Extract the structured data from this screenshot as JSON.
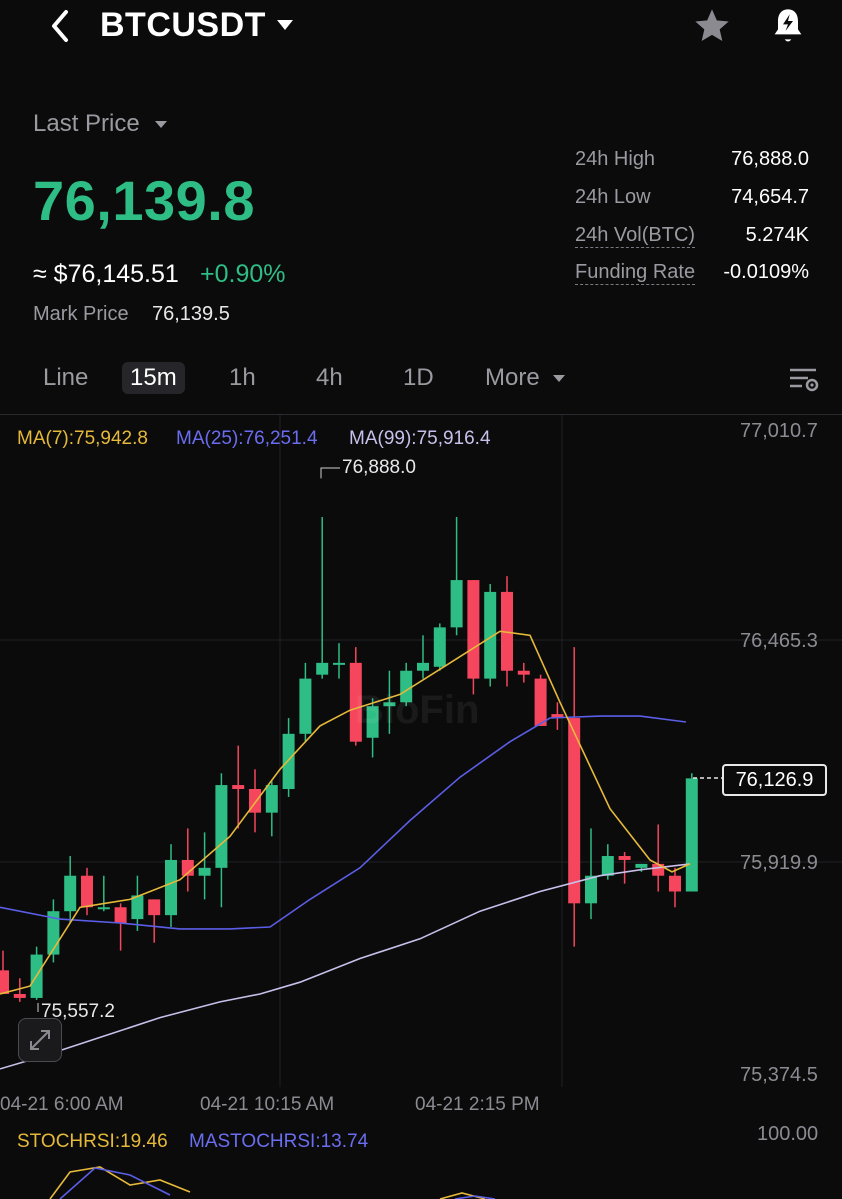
{
  "header": {
    "back_icon": "chevron-left-icon",
    "symbol": "BTCUSDT",
    "dropdown_icon": "caret-down-icon",
    "favorite_icon": "star-icon",
    "alert_icon": "bell-bolt-icon"
  },
  "ticker": {
    "last_price_label": "Last Price",
    "last_price": "76,139.8",
    "usd_value": "≈ $76,145.51",
    "change_pct": "+0.90%",
    "mark_price_label": "Mark Price",
    "mark_price": "76,139.5",
    "stats": [
      {
        "label": "24h High",
        "value": "76,888.0"
      },
      {
        "label": "24h Low",
        "value": "74,654.7"
      },
      {
        "label": "24h Vol(BTC)",
        "value": "5.274K"
      },
      {
        "label": "Funding Rate",
        "value": "-0.0109%"
      }
    ],
    "up_color": "#2ebd85",
    "down_color": "#f6465d"
  },
  "intervals": {
    "tabs": [
      "Line",
      "15m",
      "1h",
      "4h",
      "1D"
    ],
    "active": "15m",
    "more_label": "More",
    "settings_icon": "chart-settings-icon"
  },
  "indicators": {
    "ma7": "MA(7):75,942.8",
    "ma25": "MA(25):76,251.4",
    "ma99": "MA(99):75,916.4",
    "ma7_color": "#e6b93a",
    "ma25_color": "#5b5ee6",
    "ma99_color": "#c8c0ea",
    "stochrsi": "STOCHRSI:19.46",
    "mastochrsi": "MASTOCHRSI:13.74"
  },
  "watermark": "BloFin",
  "current_price_tag": "76,126.9",
  "chart_data": {
    "type": "candlestick",
    "y_axis_labels": [
      "77,010.7",
      "76,465.3",
      "75,919.9",
      "75,374.5"
    ],
    "x_axis_labels": [
      "04-21 6:00 AM",
      "04-21 10:15 AM",
      "04-21 2:15 PM"
    ],
    "high_marker": "76,888.0",
    "low_marker": "75,557.2",
    "stoch_axis_label": "100.00",
    "ylim": [
      75374.5,
      77010.7
    ],
    "candles": [
      [
        75640,
        75690,
        75580,
        75580
      ],
      [
        75580,
        75620,
        75560,
        75570
      ],
      [
        75570,
        75700,
        75565,
        75680
      ],
      [
        75680,
        75820,
        75660,
        75790
      ],
      [
        75790,
        75930,
        75760,
        75880
      ],
      [
        75880,
        75900,
        75780,
        75800
      ],
      [
        75800,
        75880,
        75790,
        75800
      ],
      [
        75800,
        75810,
        75690,
        75760
      ],
      [
        75770,
        75880,
        75740,
        75830
      ],
      [
        75820,
        75820,
        75710,
        75780
      ],
      [
        75780,
        75960,
        75750,
        75920
      ],
      [
        75920,
        76000,
        75840,
        75880
      ],
      [
        75880,
        75990,
        75820,
        75900
      ],
      [
        75900,
        76140,
        75800,
        76110
      ],
      [
        76110,
        76210,
        76000,
        76100
      ],
      [
        76100,
        76150,
        75990,
        76040
      ],
      [
        76040,
        76120,
        75980,
        76110
      ],
      [
        76100,
        76280,
        76080,
        76240
      ],
      [
        76240,
        76420,
        76220,
        76380
      ],
      [
        76390,
        76790,
        76380,
        76420
      ],
      [
        76420,
        76470,
        76380,
        76420
      ],
      [
        76420,
        76460,
        76210,
        76220
      ],
      [
        76230,
        76330,
        76180,
        76310
      ],
      [
        76310,
        76400,
        76240,
        76320
      ],
      [
        76320,
        76420,
        76310,
        76400
      ],
      [
        76400,
        76490,
        76380,
        76420
      ],
      [
        76410,
        76520,
        76400,
        76510
      ],
      [
        76510,
        76790,
        76490,
        76630
      ],
      [
        76630,
        76630,
        76340,
        76380
      ],
      [
        76380,
        76620,
        76360,
        76600
      ],
      [
        76600,
        76640,
        76360,
        76400
      ],
      [
        76400,
        76420,
        76370,
        76390
      ],
      [
        76380,
        76390,
        76260,
        76260
      ],
      [
        76290,
        76320,
        76250,
        76280
      ],
      [
        76280,
        76460,
        75700,
        75810
      ],
      [
        75810,
        76000,
        75770,
        75880
      ],
      [
        75880,
        75960,
        75870,
        75930
      ],
      [
        75930,
        75940,
        75860,
        75920
      ],
      [
        75900,
        75910,
        75890,
        75910
      ],
      [
        75910,
        76010,
        75840,
        75880
      ],
      [
        75880,
        75900,
        75800,
        75840
      ],
      [
        75840,
        76140,
        75840,
        76127
      ]
    ],
    "ma7": [
      [
        0,
        75580
      ],
      [
        30,
        75600
      ],
      [
        80,
        75800
      ],
      [
        130,
        75820
      ],
      [
        180,
        75870
      ],
      [
        230,
        75980
      ],
      [
        280,
        76150
      ],
      [
        320,
        76260
      ],
      [
        350,
        76300
      ],
      [
        400,
        76340
      ],
      [
        450,
        76420
      ],
      [
        500,
        76500
      ],
      [
        530,
        76490
      ],
      [
        560,
        76320
      ],
      [
        610,
        76050
      ],
      [
        650,
        75920
      ],
      [
        672,
        75890
      ],
      [
        690,
        75910
      ]
    ],
    "ma25": [
      [
        0,
        75800
      ],
      [
        60,
        75770
      ],
      [
        120,
        75760
      ],
      [
        180,
        75745
      ],
      [
        230,
        75745
      ],
      [
        270,
        75750
      ],
      [
        310,
        75820
      ],
      [
        360,
        75900
      ],
      [
        410,
        76020
      ],
      [
        460,
        76130
      ],
      [
        510,
        76220
      ],
      [
        550,
        76280
      ],
      [
        600,
        76285
      ],
      [
        640,
        76285
      ],
      [
        686,
        76270
      ]
    ],
    "ma99": [
      [
        0,
        75390
      ],
      [
        40,
        75420
      ],
      [
        100,
        75470
      ],
      [
        160,
        75520
      ],
      [
        220,
        75560
      ],
      [
        260,
        75580
      ],
      [
        300,
        75610
      ],
      [
        360,
        75670
      ],
      [
        420,
        75720
      ],
      [
        480,
        75790
      ],
      [
        540,
        75840
      ],
      [
        600,
        75880
      ],
      [
        640,
        75895
      ],
      [
        690,
        75910
      ]
    ],
    "stoch_k": [
      [
        50,
        1199
      ],
      [
        70,
        1172
      ],
      [
        100,
        1167
      ],
      [
        130,
        1185
      ],
      [
        160,
        1180
      ],
      [
        190,
        1192
      ]
    ],
    "stoch_d": [
      [
        60,
        1199
      ],
      [
        95,
        1168
      ],
      [
        130,
        1175
      ],
      [
        170,
        1195
      ]
    ]
  }
}
